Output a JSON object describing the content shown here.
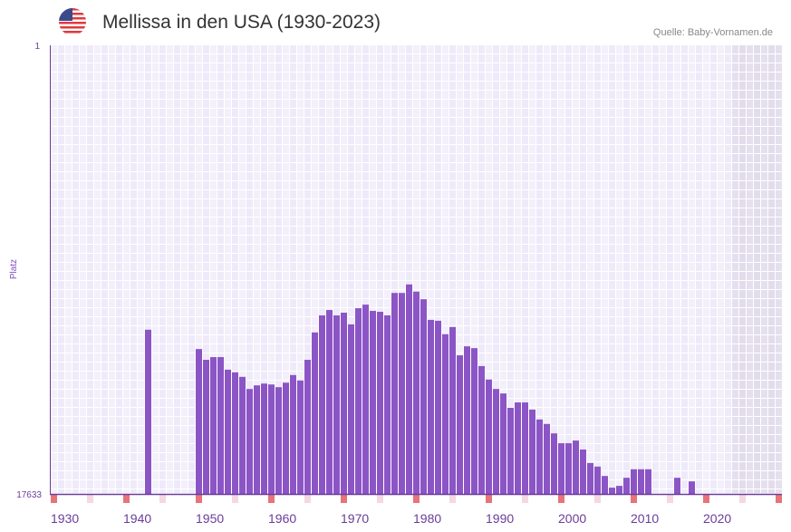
{
  "header": {
    "title": "Mellissa in den USA (1930-2023)",
    "source": "Quelle: Baby-Vornamen.de",
    "flag_icon": "us-flag-icon"
  },
  "chart_data": {
    "type": "bar",
    "title": "Mellissa in den USA (1930-2023)",
    "xlabel": "",
    "ylabel": "Platz",
    "y_tick_labels": [
      "1",
      "17633"
    ],
    "ylim_rank": [
      17633,
      1
    ],
    "xlim": [
      1930,
      2030
    ],
    "x_tick_labels": [
      "1930",
      "1940",
      "1950",
      "1960",
      "1970",
      "1980",
      "1990",
      "2000",
      "2010",
      "2020"
    ],
    "forecast_region_start": 2024,
    "value_note": "values = bar height as fraction of rank axis (0 = rank 17633, 1 = rank 1)",
    "bar_color": "#8b55c6",
    "grid": true,
    "bars": [
      {
        "year": 1943,
        "value": 0.366
      },
      {
        "year": 1950,
        "value": 0.323
      },
      {
        "year": 1951,
        "value": 0.299
      },
      {
        "year": 1952,
        "value": 0.305
      },
      {
        "year": 1953,
        "value": 0.305
      },
      {
        "year": 1954,
        "value": 0.277
      },
      {
        "year": 1955,
        "value": 0.271
      },
      {
        "year": 1956,
        "value": 0.261
      },
      {
        "year": 1957,
        "value": 0.234
      },
      {
        "year": 1958,
        "value": 0.242
      },
      {
        "year": 1959,
        "value": 0.246
      },
      {
        "year": 1960,
        "value": 0.244
      },
      {
        "year": 1961,
        "value": 0.238
      },
      {
        "year": 1962,
        "value": 0.248
      },
      {
        "year": 1963,
        "value": 0.265
      },
      {
        "year": 1964,
        "value": 0.253
      },
      {
        "year": 1965,
        "value": 0.299
      },
      {
        "year": 1966,
        "value": 0.36
      },
      {
        "year": 1967,
        "value": 0.398
      },
      {
        "year": 1968,
        "value": 0.41
      },
      {
        "year": 1969,
        "value": 0.398
      },
      {
        "year": 1970,
        "value": 0.404
      },
      {
        "year": 1971,
        "value": 0.378
      },
      {
        "year": 1972,
        "value": 0.414
      },
      {
        "year": 1973,
        "value": 0.422
      },
      {
        "year": 1974,
        "value": 0.408
      },
      {
        "year": 1975,
        "value": 0.406
      },
      {
        "year": 1976,
        "value": 0.398
      },
      {
        "year": 1977,
        "value": 0.448
      },
      {
        "year": 1978,
        "value": 0.448
      },
      {
        "year": 1979,
        "value": 0.467
      },
      {
        "year": 1980,
        "value": 0.451
      },
      {
        "year": 1981,
        "value": 0.434
      },
      {
        "year": 1982,
        "value": 0.388
      },
      {
        "year": 1983,
        "value": 0.386
      },
      {
        "year": 1984,
        "value": 0.356
      },
      {
        "year": 1985,
        "value": 0.372
      },
      {
        "year": 1986,
        "value": 0.309
      },
      {
        "year": 1987,
        "value": 0.329
      },
      {
        "year": 1988,
        "value": 0.325
      },
      {
        "year": 1989,
        "value": 0.285
      },
      {
        "year": 1990,
        "value": 0.255
      },
      {
        "year": 1991,
        "value": 0.234
      },
      {
        "year": 1992,
        "value": 0.224
      },
      {
        "year": 1993,
        "value": 0.192
      },
      {
        "year": 1994,
        "value": 0.204
      },
      {
        "year": 1995,
        "value": 0.204
      },
      {
        "year": 1996,
        "value": 0.188
      },
      {
        "year": 1997,
        "value": 0.166
      },
      {
        "year": 1998,
        "value": 0.156
      },
      {
        "year": 1999,
        "value": 0.135
      },
      {
        "year": 2000,
        "value": 0.113
      },
      {
        "year": 2001,
        "value": 0.113
      },
      {
        "year": 2002,
        "value": 0.119
      },
      {
        "year": 2003,
        "value": 0.099
      },
      {
        "year": 2004,
        "value": 0.069
      },
      {
        "year": 2005,
        "value": 0.061
      },
      {
        "year": 2006,
        "value": 0.04
      },
      {
        "year": 2007,
        "value": 0.014
      },
      {
        "year": 2008,
        "value": 0.018
      },
      {
        "year": 2009,
        "value": 0.036
      },
      {
        "year": 2010,
        "value": 0.055
      },
      {
        "year": 2011,
        "value": 0.055
      },
      {
        "year": 2012,
        "value": 0.055
      },
      {
        "year": 2016,
        "value": 0.036
      },
      {
        "year": 2018,
        "value": 0.028
      }
    ]
  }
}
